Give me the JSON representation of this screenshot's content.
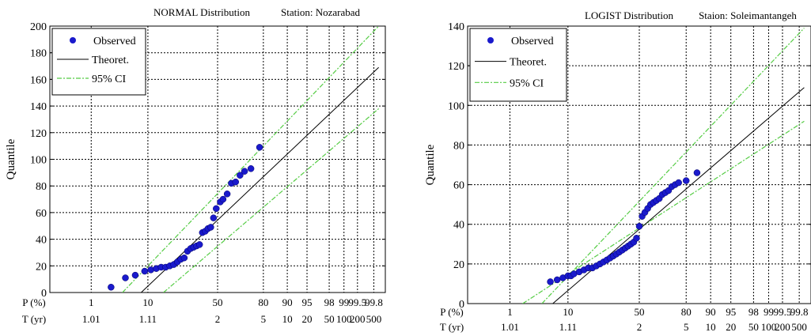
{
  "colors": {
    "observed": "#1a1acc",
    "theoretical": "#000000",
    "ci": "#55cc44",
    "grid": "#000000"
  },
  "chart_data": [
    {
      "type": "scatter",
      "title": "NORMAL Distribution",
      "station": "Station: Nozarabad",
      "ylabel": "Quantile",
      "ylim": [
        0,
        200
      ],
      "yticks": [
        0,
        20,
        40,
        60,
        80,
        100,
        120,
        140,
        160,
        180,
        200
      ],
      "p_row_label": "P (%)",
      "t_row_label": "T (yr)",
      "p_labels": [
        {
          "text": "1",
          "x": 1
        },
        {
          "text": "10",
          "x": 10
        },
        {
          "text": "50",
          "x": 50
        },
        {
          "text": "80",
          "x": 80
        },
        {
          "text": "90",
          "x": 90
        },
        {
          "text": "95",
          "x": 95
        },
        {
          "text": "98",
          "x": 98
        },
        {
          "text": "99",
          "x": 99
        },
        {
          "text": "99.5",
          "x": 99.5
        },
        {
          "text": "99.8",
          "x": 99.8
        }
      ],
      "t_labels": [
        {
          "text": "1.01",
          "x": 1
        },
        {
          "text": "1.11",
          "x": 10
        },
        {
          "text": "2",
          "x": 50
        },
        {
          "text": "5",
          "x": 80
        },
        {
          "text": "10",
          "x": 90
        },
        {
          "text": "20",
          "x": 95
        },
        {
          "text": "50",
          "x": 98
        },
        {
          "text": "100",
          "x": 99
        },
        {
          "text": "200",
          "x": 99.5
        },
        {
          "text": "500",
          "x": 99.8
        }
      ],
      "grid_x": [
        1,
        10,
        50,
        80,
        90,
        95,
        98,
        99,
        99.5,
        99.8
      ],
      "legend": [
        "Observed",
        "Theoret.",
        "95% CI"
      ],
      "series": [
        {
          "name": "Observed",
          "points": [
            [
              2.5,
              4
            ],
            [
              4.5,
              11
            ],
            [
              6.5,
              13
            ],
            [
              9,
              16
            ],
            [
              11,
              17
            ],
            [
              13,
              18
            ],
            [
              15,
              19
            ],
            [
              17,
              19
            ],
            [
              19,
              20
            ],
            [
              21,
              21
            ],
            [
              23,
              23
            ],
            [
              25,
              25
            ],
            [
              27,
              26
            ],
            [
              29,
              31
            ],
            [
              31,
              33
            ],
            [
              33,
              34
            ],
            [
              35,
              35
            ],
            [
              37,
              36
            ],
            [
              39,
              45
            ],
            [
              41,
              46
            ],
            [
              43,
              48
            ],
            [
              45,
              49
            ],
            [
              47,
              56
            ],
            [
              49,
              63
            ],
            [
              52,
              68
            ],
            [
              54,
              70
            ],
            [
              57,
              74
            ],
            [
              60,
              82
            ],
            [
              63,
              83
            ],
            [
              66,
              88
            ],
            [
              69,
              91
            ],
            [
              73,
              93
            ],
            [
              78,
              109
            ]
          ]
        },
        {
          "name": "Theoret.",
          "points": [
            [
              8,
              0
            ],
            [
              99.85,
              169
            ]
          ]
        },
        {
          "name": "95% CI",
          "upper": [
            [
              4,
              0
            ],
            [
              99.85,
              200
            ]
          ],
          "lower": [
            [
              16,
              0
            ],
            [
              99.85,
              138
            ]
          ]
        }
      ]
    },
    {
      "type": "scatter",
      "title": "LOGIST Distribution",
      "station": "Staion: Soleimantangeh",
      "ylabel": "Quantile",
      "ylim": [
        0,
        140
      ],
      "yticks": [
        0,
        20,
        40,
        60,
        80,
        100,
        120,
        140
      ],
      "p_row_label": "P (%)",
      "t_row_label": "T (yr)",
      "p_labels": [
        {
          "text": "1",
          "x": 1
        },
        {
          "text": "10",
          "x": 10
        },
        {
          "text": "50",
          "x": 50
        },
        {
          "text": "80",
          "x": 80
        },
        {
          "text": "90",
          "x": 90
        },
        {
          "text": "95",
          "x": 95
        },
        {
          "text": "98",
          "x": 98
        },
        {
          "text": "99",
          "x": 99
        },
        {
          "text": "99.5",
          "x": 99.5
        },
        {
          "text": "99.8",
          "x": 99.8
        }
      ],
      "t_labels": [
        {
          "text": "1.01",
          "x": 1
        },
        {
          "text": "1.11",
          "x": 10
        },
        {
          "text": "2",
          "x": 50
        },
        {
          "text": "5",
          "x": 80
        },
        {
          "text": "10",
          "x": 90
        },
        {
          "text": "20",
          "x": 95
        },
        {
          "text": "50",
          "x": 98
        },
        {
          "text": "100",
          "x": 99
        },
        {
          "text": "200",
          "x": 99.5
        },
        {
          "text": "500",
          "x": 99.8
        }
      ],
      "grid_x": [
        1,
        10,
        50,
        80,
        90,
        95,
        98,
        99,
        99.5,
        99.8
      ],
      "legend": [
        "Observed",
        "Theoret.",
        "95% CI"
      ],
      "series": [
        {
          "name": "Observed",
          "points": [
            [
              5.5,
              11
            ],
            [
              7,
              12
            ],
            [
              8.5,
              13
            ],
            [
              10,
              14
            ],
            [
              11,
              14
            ],
            [
              12,
              15
            ],
            [
              14,
              16
            ],
            [
              16,
              17
            ],
            [
              18,
              18
            ],
            [
              20,
              18
            ],
            [
              22,
              19
            ],
            [
              24,
              20
            ],
            [
              26,
              21
            ],
            [
              28,
              22
            ],
            [
              30,
              23
            ],
            [
              32,
              24
            ],
            [
              34,
              25
            ],
            [
              36,
              26
            ],
            [
              38,
              27
            ],
            [
              40,
              28
            ],
            [
              42,
              29
            ],
            [
              44,
              30
            ],
            [
              46,
              31
            ],
            [
              48,
              33
            ],
            [
              50,
              39
            ],
            [
              52,
              44
            ],
            [
              54,
              46
            ],
            [
              56,
              48
            ],
            [
              58,
              50
            ],
            [
              60,
              51
            ],
            [
              62,
              52
            ],
            [
              64,
              53
            ],
            [
              66,
              55
            ],
            [
              68,
              56
            ],
            [
              70,
              57
            ],
            [
              72,
              59
            ],
            [
              74,
              60
            ],
            [
              76,
              61
            ],
            [
              80,
              62
            ],
            [
              85,
              66
            ]
          ]
        },
        {
          "name": "Theoret.",
          "points": [
            [
              6,
              0
            ],
            [
              99.85,
              109
            ]
          ]
        },
        {
          "name": "95% CI",
          "upper": [
            [
              4,
              0
            ],
            [
              99.85,
              139
            ]
          ],
          "lower": [
            [
              1.8,
              0
            ],
            [
              99.85,
              92
            ]
          ]
        }
      ]
    }
  ]
}
